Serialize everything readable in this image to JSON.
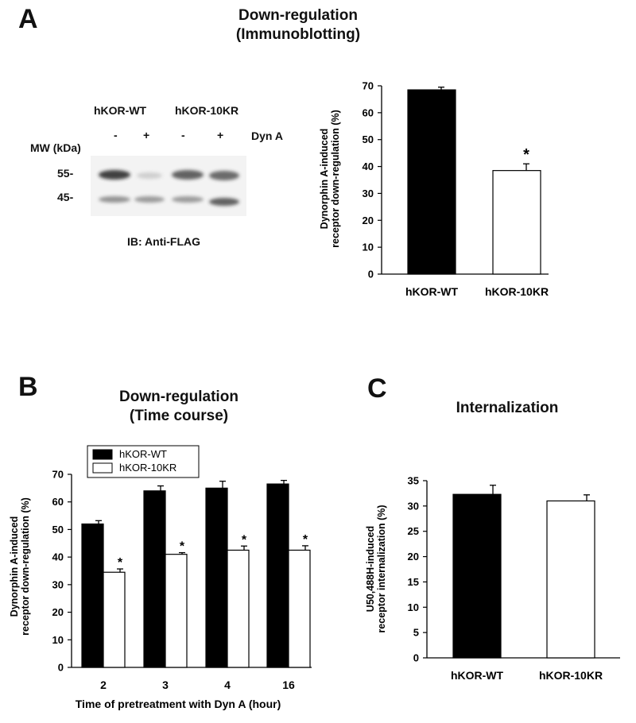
{
  "panel_a": {
    "letter": "A",
    "title_line1": "Down-regulation",
    "title_line2": "(Immunoblotting)",
    "blot": {
      "lane_groups": [
        "hKOR-WT",
        "hKOR-10KR"
      ],
      "treatment": [
        "-",
        "+",
        "-",
        "+"
      ],
      "treatment_label": "Dyn A",
      "mw_label": "MW (kDa)",
      "markers": [
        "55-",
        "45-"
      ],
      "ib_label": "IB: Anti-FLAG"
    }
  },
  "panel_b": {
    "letter": "B",
    "title_line1": "Down-regulation",
    "title_line2": "(Time course)"
  },
  "panel_c": {
    "letter": "C",
    "title": "Internalization"
  },
  "chart_data": [
    {
      "id": "A-bar",
      "type": "bar",
      "categories": [
        "hKOR-WT",
        "hKOR-10KR"
      ],
      "values": [
        68.5,
        38.5
      ],
      "errors": [
        1.0,
        2.5
      ],
      "significance": [
        "",
        "*"
      ],
      "colors": [
        "#000000",
        "#ffffff"
      ],
      "ylabel_line1": "Dynorphin A-induced",
      "ylabel_line2": "receptor down-regulation (%)",
      "ylim": [
        0,
        70
      ],
      "yticks": [
        0,
        10,
        20,
        30,
        40,
        50,
        60,
        70
      ]
    },
    {
      "id": "B-bar",
      "type": "bar",
      "categories": [
        "2",
        "3",
        "4",
        "16"
      ],
      "series": [
        {
          "name": "hKOR-WT",
          "values": [
            52,
            64,
            65,
            66.5
          ],
          "errors": [
            1.2,
            1.8,
            2.5,
            1.3
          ],
          "color": "#000000"
        },
        {
          "name": "hKOR-10KR",
          "values": [
            34.5,
            41,
            42.5,
            42.5
          ],
          "errors": [
            1.2,
            0.6,
            1.5,
            1.6
          ],
          "color": "#ffffff"
        }
      ],
      "significance": [
        "*",
        "*",
        "*",
        "*"
      ],
      "xlabel": "Time of pretreatment with Dyn A (hour)",
      "ylabel_line1": "Dynorphin A-induced",
      "ylabel_line2": "receptor down-regulation (%)",
      "ylim": [
        0,
        70
      ],
      "yticks": [
        0,
        10,
        20,
        30,
        40,
        50,
        60,
        70
      ],
      "legend": "top-left"
    },
    {
      "id": "C-bar",
      "type": "bar",
      "categories": [
        "hKOR-WT",
        "hKOR-10KR"
      ],
      "values": [
        32.3,
        31.0
      ],
      "errors": [
        1.8,
        1.2
      ],
      "colors": [
        "#000000",
        "#ffffff"
      ],
      "ylabel_line1": "U50,488H-induced",
      "ylabel_line2": "receptor internalization (%)",
      "ylim": [
        0,
        35
      ],
      "yticks": [
        0,
        5,
        10,
        15,
        20,
        25,
        30,
        35
      ]
    }
  ]
}
